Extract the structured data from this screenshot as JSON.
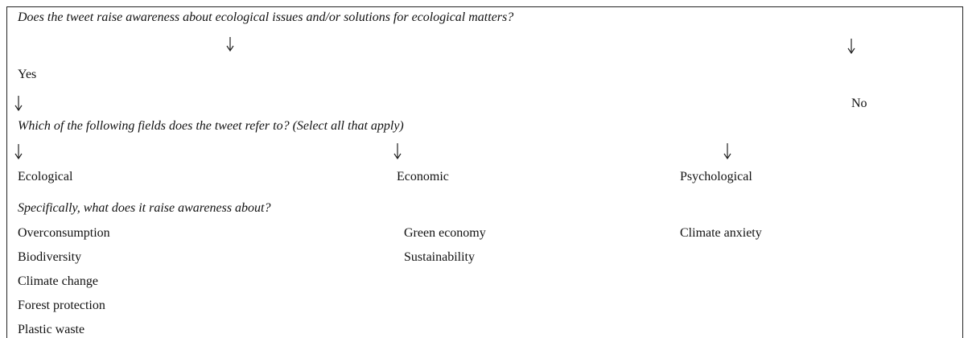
{
  "question": "Does the tweet raise awareness about ecological issues and/or solutions for ecological matters?",
  "yes": "Yes",
  "no": "No",
  "fields_question": "Which of the following fields does the tweet refer to? (Select all that apply)",
  "fields": [
    {
      "name": "Ecological",
      "items": [
        "Overconsumption",
        "Biodiversity",
        "Climate change",
        "Forest protection",
        "Plastic waste"
      ]
    },
    {
      "name": "Economic",
      "items": [
        "Green economy",
        "Sustainability"
      ]
    },
    {
      "name": "Psychological",
      "items": [
        "Climate anxiety"
      ]
    }
  ],
  "specific_question": "Specifically, what does it raise awareness about?"
}
